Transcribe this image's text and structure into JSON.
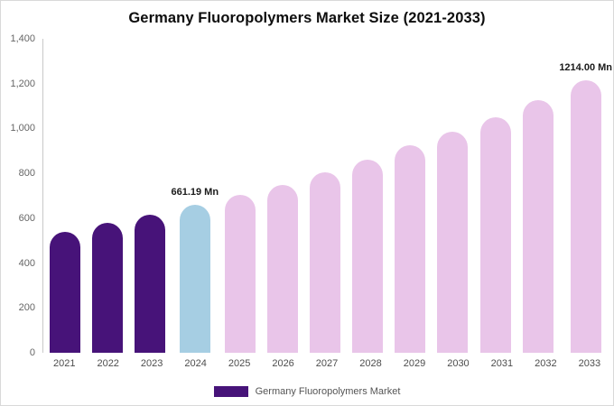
{
  "chart_data": {
    "type": "bar",
    "title": "Germany Fluoropolymers Market Size (2021-2033)",
    "legend": "Germany Fluoropolymers Market",
    "unit": "Mn",
    "categories": [
      "2021",
      "2022",
      "2023",
      "2024",
      "2025",
      "2026",
      "2027",
      "2028",
      "2029",
      "2030",
      "2031",
      "2032",
      "2033"
    ],
    "values": [
      540,
      578,
      615,
      661.19,
      705,
      748,
      805,
      862,
      925,
      985,
      1050,
      1126,
      1214
    ],
    "ylim": [
      0,
      1400
    ],
    "y_ticks": [
      {
        "label": "0",
        "value": 0
      },
      {
        "label": "200",
        "value": 200
      },
      {
        "label": "400",
        "value": 400
      },
      {
        "label": "600",
        "value": 600
      },
      {
        "label": "800",
        "value": 800
      },
      {
        "label": "1,000",
        "value": 1000
      },
      {
        "label": "1,200",
        "value": 1200
      },
      {
        "label": "1,400",
        "value": 1400
      }
    ],
    "annotations": [
      {
        "index": 3,
        "text": "661.19 Mn"
      },
      {
        "index": 12,
        "text": "1214.00 Mn"
      }
    ],
    "bar_colors": [
      "#471379",
      "#471379",
      "#471379",
      "#a6cee3",
      "#e9c5e9",
      "#e9c5e9",
      "#e9c5e9",
      "#e9c5e9",
      "#e9c5e9",
      "#e9c5e9",
      "#e9c5e9",
      "#e9c5e9",
      "#e9c5e9"
    ],
    "colors": {
      "historical": "#471379",
      "highlight": "#a6cee3",
      "forecast": "#e9c5e9",
      "axis_text": "#666666",
      "label_text": "#1a1a1a"
    },
    "grid": false,
    "legend_position": "bottom"
  }
}
